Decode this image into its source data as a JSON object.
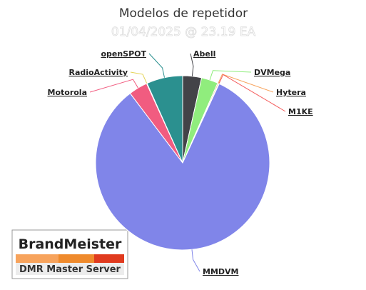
{
  "chart_data": {
    "type": "pie",
    "title": "Modelos de repetidor",
    "subtitle": "01/04/2025 @ 23.19 EA",
    "categories": [
      "Abell",
      "DVMega",
      "Hytera",
      "M1KE",
      "MMDVM",
      "Motorola",
      "RadioActivity",
      "openSPOT"
    ],
    "values": [
      3.5,
      3.1,
      0.2,
      0.1,
      82.8,
      3.5,
      0.1,
      6.7
    ],
    "colors": [
      "#434348",
      "#90ed7d",
      "#f7a35c",
      "#f45b5b",
      "#8085e9",
      "#f15c80",
      "#e4d354",
      "#2b908f"
    ]
  },
  "logo": {
    "title": "BrandMeister",
    "subtitle": "DMR Master Server"
  }
}
